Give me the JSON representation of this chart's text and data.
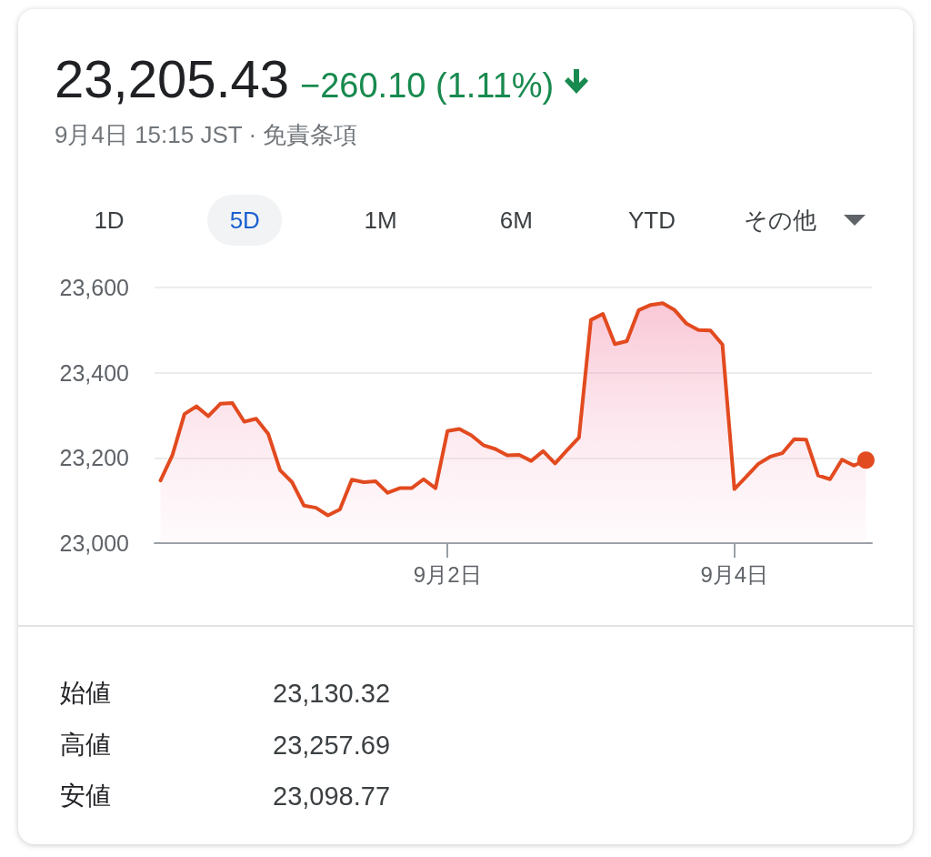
{
  "chart_data": {
    "type": "area",
    "title": "23,205.43",
    "subtitle": "−260.10 (1.11%)",
    "annotations": [
      "9月4日 15:15 JST · 免責条項",
      "1D",
      "5D",
      "1M",
      "6M",
      "YTD",
      "その他",
      "始値",
      "23,130.32",
      "高値",
      "23,257.69",
      "安値",
      "23,098.77"
    ],
    "categories": [
      null,
      null,
      null,
      null,
      null,
      null,
      null,
      null,
      null,
      null,
      null,
      null,
      null,
      null,
      null,
      null,
      null,
      null,
      null,
      null,
      null,
      null,
      null,
      null,
      "9月2日",
      null,
      null,
      null,
      null,
      null,
      null,
      null,
      null,
      null,
      null,
      null,
      null,
      null,
      null,
      null,
      null,
      null,
      null,
      null,
      null,
      null,
      null,
      null,
      "9月4日",
      null,
      null,
      null,
      null,
      null,
      null,
      null,
      null,
      null,
      null,
      null
    ],
    "series": [
      {
        "color": "#e24a1f",
        "values": [
          23147,
          23207,
          23303,
          23321,
          23298,
          23327,
          23329,
          23285,
          23292,
          23257,
          23171,
          23143,
          23088,
          23083,
          23065,
          23079,
          23149,
          23143,
          23145,
          23118,
          23129,
          23129,
          23150,
          23129,
          23263,
          23268,
          23253,
          23230,
          23221,
          23206,
          23207,
          23193,
          23216,
          23187,
          23218,
          23248,
          23524,
          23538,
          23467,
          23474,
          23547,
          23559,
          23563,
          23547,
          23515,
          23500,
          23499,
          23466,
          23127,
          23156,
          23186,
          23203,
          23211,
          23244,
          23243,
          23159,
          23150,
          23196,
          23182,
          23195
        ]
      }
    ],
    "ylim": [
      23000,
      23600
    ],
    "yticks": [
      {
        "value": 23000,
        "label": "23,000"
      },
      {
        "value": 23200,
        "label": "23,200"
      },
      {
        "value": 23400,
        "label": "23,400"
      },
      {
        "value": 23600,
        "label": "23,600"
      }
    ],
    "grid": "y"
  }
}
